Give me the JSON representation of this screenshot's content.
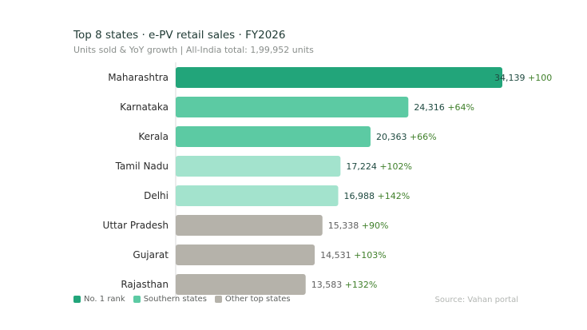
{
  "chart_data": {
    "type": "bar",
    "orientation": "horizontal",
    "title": "Top 8 states · e-PV retail sales · FY2026",
    "subtitle": "Units sold & YoY growth | All-India total: 1,99,952 units",
    "categories": [
      "Maharashtra",
      "Karnataka",
      "Kerala",
      "Tamil Nadu",
      "Delhi",
      "Uttar Pradesh",
      "Gujarat",
      "Rajasthan"
    ],
    "values": [
      34139,
      24316,
      20363,
      17224,
      16988,
      15338,
      14531,
      13583
    ],
    "value_labels": [
      "34,139",
      "24,316",
      "20,363",
      "17,224",
      "16,988",
      "15,338",
      "14,531",
      "13,583"
    ],
    "growth_labels": [
      "+100",
      "+64%",
      "+66%",
      "+102%",
      "+142%",
      "+90%",
      "+103%",
      "+132%"
    ],
    "groups": [
      "rank1",
      "southern",
      "southern",
      "southern_light",
      "southern_light",
      "other",
      "other",
      "other"
    ],
    "xlim": [
      0,
      34139
    ],
    "grid": false,
    "legend_position": "bottom-left",
    "legend": [
      {
        "label": "No. 1 rank",
        "color": "#22a57a"
      },
      {
        "label": "Southern states",
        "color": "#5ccaa3"
      },
      {
        "label": "Other top states",
        "color": "#b5b2aa"
      }
    ],
    "colors": {
      "rank1": "#22a57a",
      "southern": "#5ccaa3",
      "southern_light": "#a3e3cd",
      "other": "#b5b2aa",
      "value_text_dark": "#1f4a40",
      "value_text_other": "#5f5f5f",
      "growth_text": "#3f7f2a",
      "axis_line": "#d8d8d8"
    },
    "source": "Source: Vahan portal"
  }
}
